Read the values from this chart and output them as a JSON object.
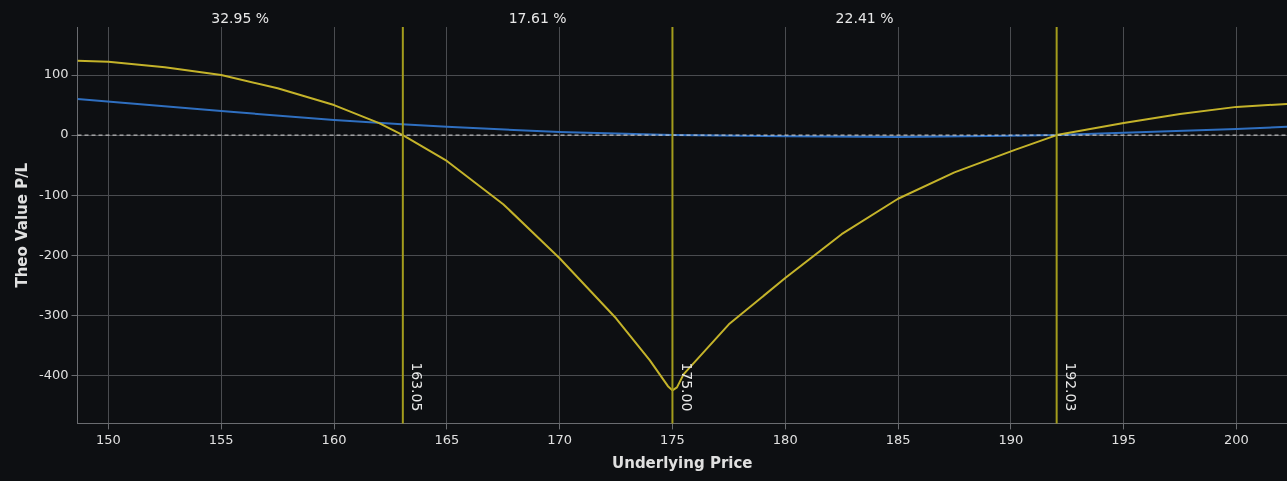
{
  "chart_data": {
    "type": "line",
    "xlabel": "Underlying Price",
    "ylabel": "Theo Value P/L",
    "xlim": [
      148.63,
      202.24
    ],
    "xticks": [
      150,
      155,
      160,
      165,
      170,
      175,
      180,
      185,
      190,
      195,
      200
    ],
    "ylim": [
      -480,
      180
    ],
    "yticks": [
      -400,
      -300,
      -200,
      -100,
      0,
      100
    ],
    "grid": true,
    "legend": false,
    "marker": "none",
    "line_style": "solid",
    "series": [
      {
        "color": "#c4b32a",
        "x": [
          148.63,
          150,
          152.5,
          155,
          157.5,
          160,
          162,
          163.05,
          165,
          167.5,
          170,
          172.5,
          174,
          174.8,
          175,
          175.2,
          175.5,
          177.5,
          180,
          182.5,
          185,
          187.5,
          190,
          192.03,
          195,
          197.5,
          200,
          202.24
        ],
        "values": [
          124,
          122,
          113,
          100,
          78,
          50,
          20,
          0,
          -43,
          -115,
          -205,
          -305,
          -375,
          -418,
          -425,
          -420,
          -398,
          -315,
          -238,
          -165,
          -106,
          -62,
          -27,
          0,
          20,
          35,
          47,
          52
        ]
      },
      {
        "color": "#2f6fc0",
        "x": [
          148.63,
          155,
          160,
          163,
          165,
          170,
          175,
          180,
          185,
          190,
          192,
          195,
          200,
          202.24
        ],
        "values": [
          60,
          40,
          25,
          18,
          14,
          5,
          0,
          -2,
          -3,
          -1,
          0,
          4,
          10,
          14
        ]
      }
    ],
    "ref_lines": [
      {
        "axis": "y",
        "value": 0,
        "color": "#d8d8d8",
        "line_style": "dashed"
      },
      {
        "axis": "x",
        "value": 163.05,
        "label": "163.05",
        "color": "#a39c1c"
      },
      {
        "axis": "x",
        "value": 175.0,
        "label": "175.00",
        "color": "#a39c1c"
      },
      {
        "axis": "x",
        "value": 192.03,
        "label": "192.03",
        "color": "#a39c1c"
      }
    ],
    "annotations": [
      "32.95 %",
      "17.61 %",
      "22.41 %"
    ]
  }
}
